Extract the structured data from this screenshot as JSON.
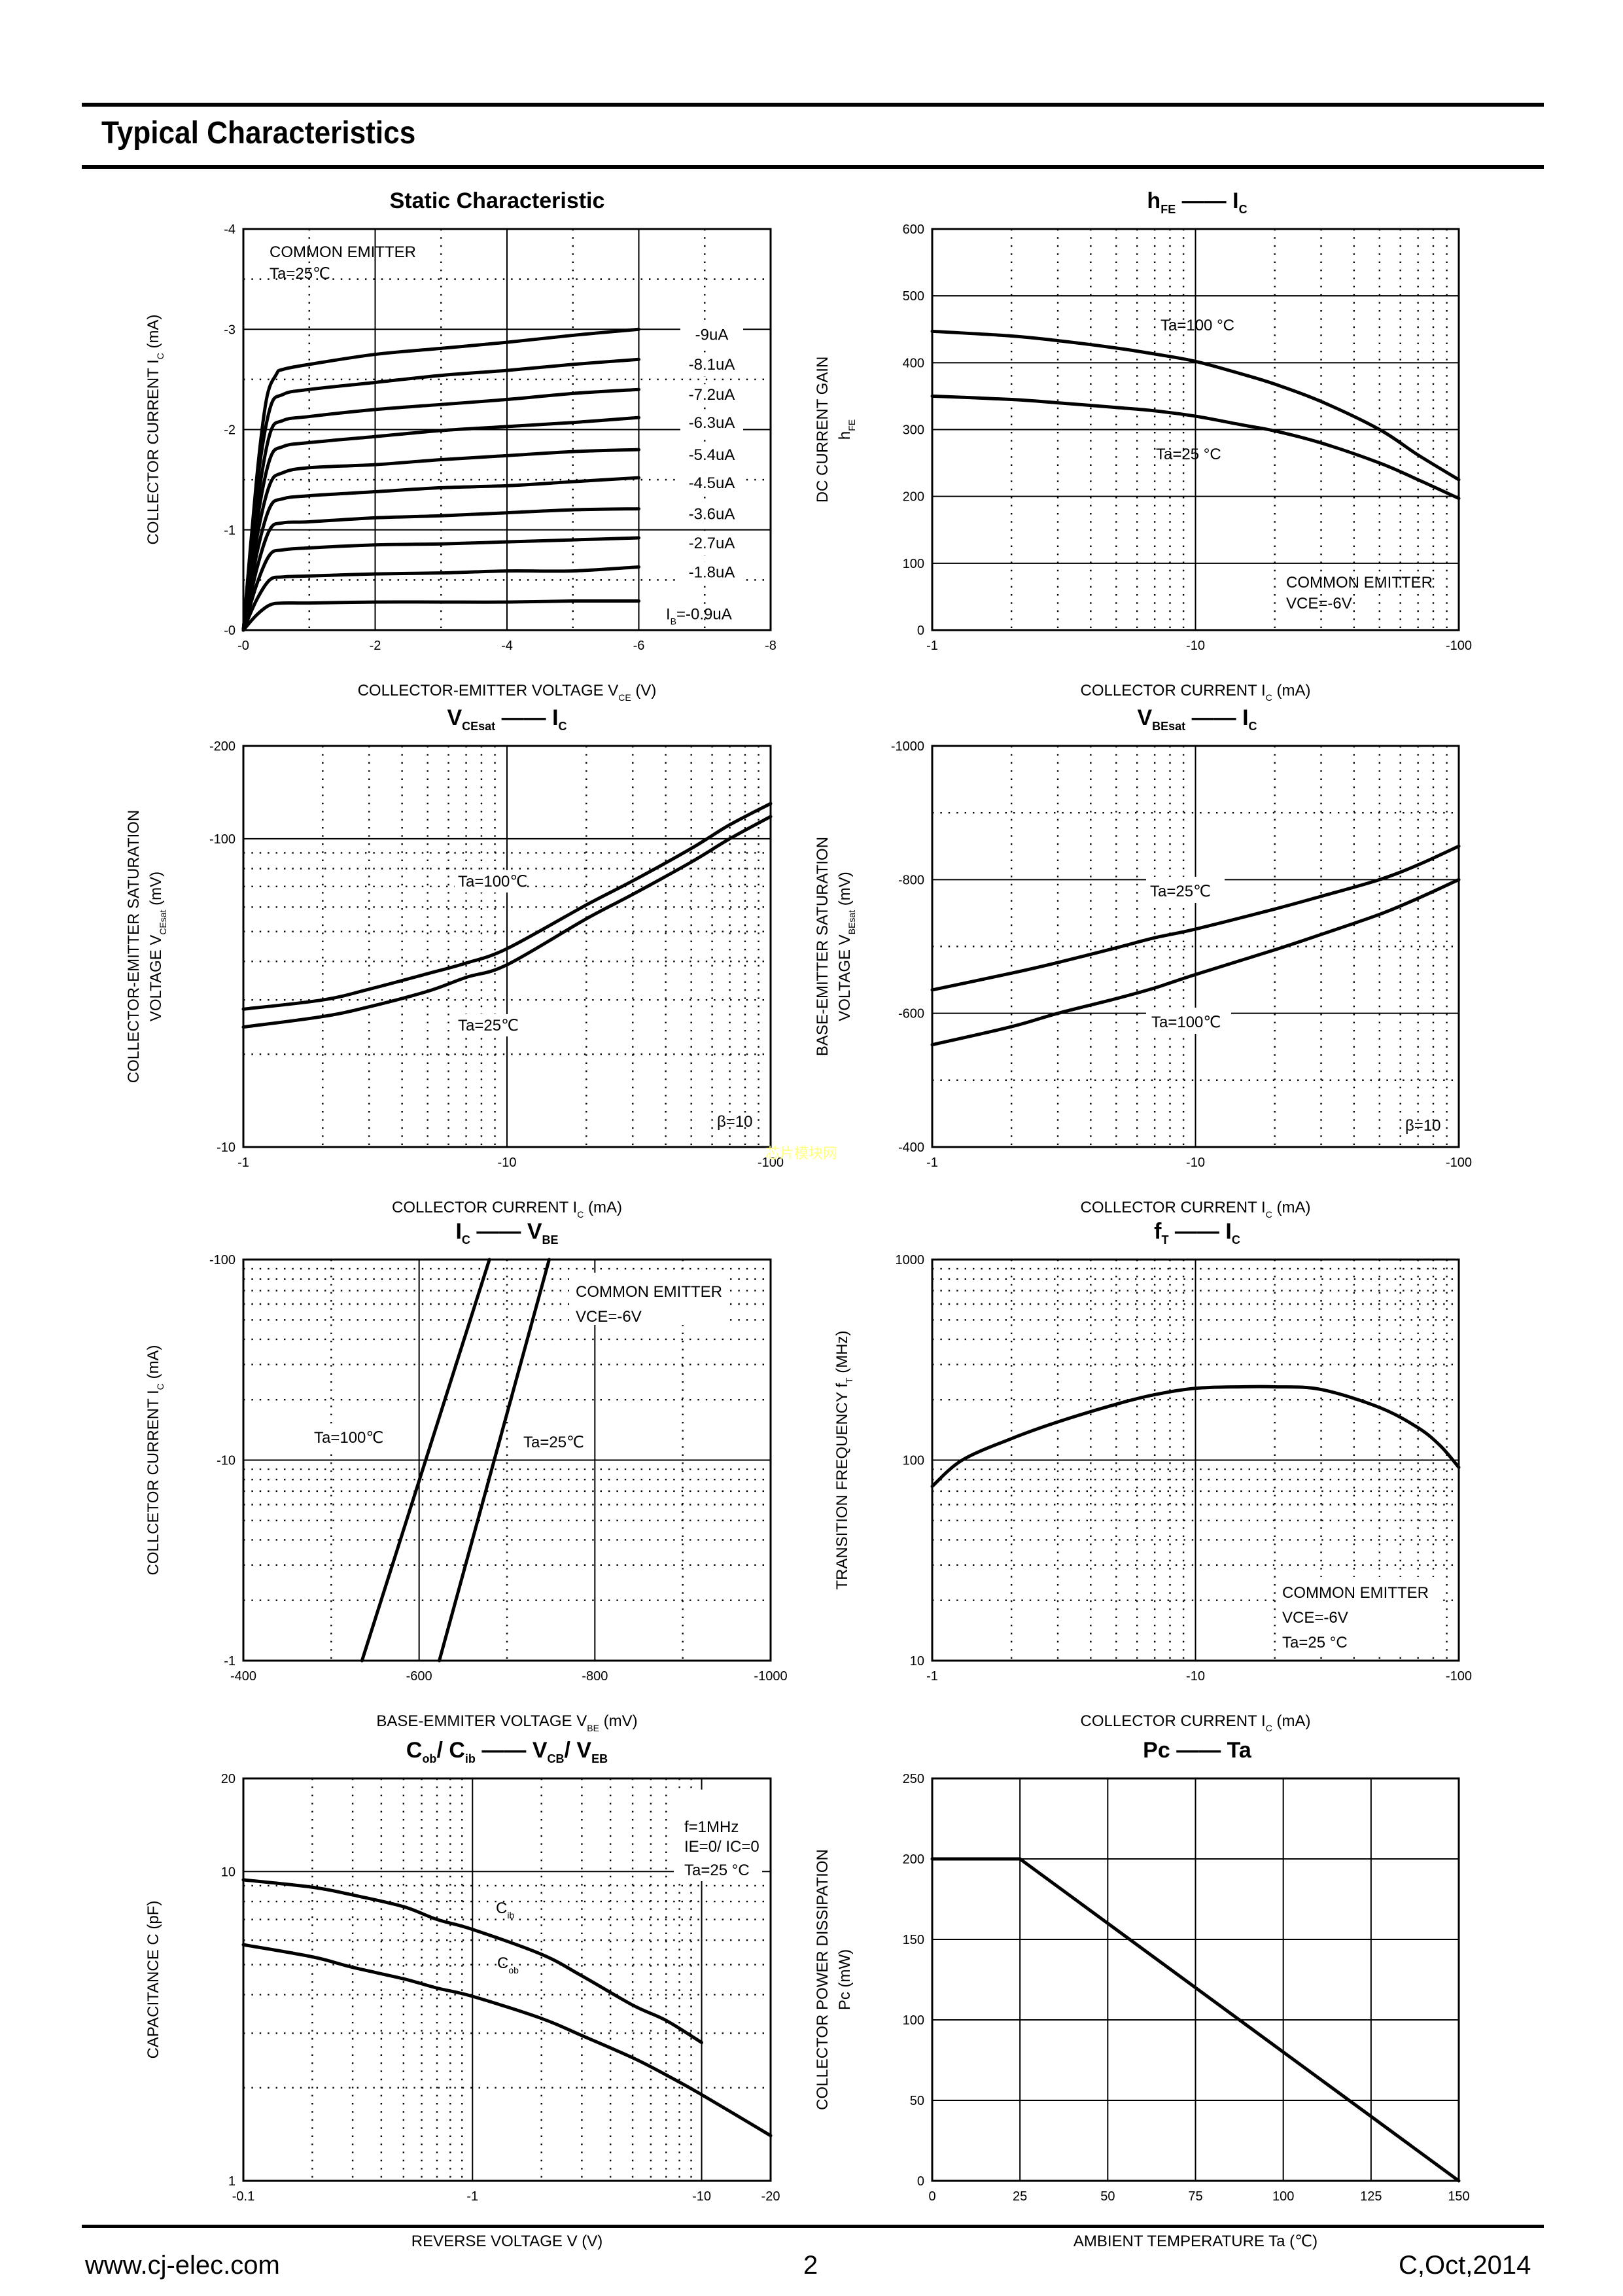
{
  "page": {
    "section_title": "Typical Characteristics",
    "footer": {
      "website": "www.cj-elec.com",
      "page_number": "2",
      "revision": "C,Oct,2014"
    },
    "watermark": "芯片模块网"
  },
  "chart_data": [
    {
      "id": "static",
      "type": "line",
      "title": "Static Characteristic",
      "title_parts": [
        {
          "t": "Static Characteristic"
        }
      ],
      "xlabel": "COLLECTOR-EMITTER VOLTAGE   V",
      "xlabel_sub": "CE",
      "xlabel_unit": "(V)",
      "ylabel": "COLLECTOR CURRENT   I",
      "ylabel_sub": "C",
      "ylabel_unit": "(mA)",
      "xscale": "linear",
      "yscale": "linear",
      "xlim": [
        0,
        -8
      ],
      "ylim": [
        0,
        -4
      ],
      "xticks": [
        0,
        -2,
        -4,
        -6,
        -8
      ],
      "xtick_labels": [
        "-0",
        "-2",
        "-4",
        "-6",
        "-8"
      ],
      "yticks": [
        0,
        -1,
        -2,
        -3,
        -4
      ],
      "ytick_labels": [
        "-0",
        "-1",
        "-2",
        "-3",
        "-4"
      ],
      "grid_major_x": [
        -2,
        -4,
        -6
      ],
      "grid_minor_x": [
        -1,
        -3,
        -5,
        -7
      ],
      "grid_major_y": [
        -1,
        -2,
        -3
      ],
      "grid_minor_y": [
        -0.5,
        -1.5,
        -2.5,
        -3.5
      ],
      "annotations": [
        "COMMON EMITTER",
        "Ta=25℃"
      ],
      "series": [
        {
          "name": "IB=-0.9uA",
          "label": "-0.9uA",
          "x": [
            0,
            -0.2,
            -0.4,
            -0.6,
            -1,
            -2,
            -3,
            -4,
            -5,
            -6
          ],
          "y": [
            0,
            -0.15,
            -0.25,
            -0.27,
            -0.27,
            -0.28,
            -0.28,
            -0.28,
            -0.29,
            -0.29
          ]
        },
        {
          "name": "IB=-1.8uA",
          "label": "-1.8uA",
          "x": [
            0,
            -0.2,
            -0.4,
            -0.6,
            -1,
            -2,
            -3,
            -4,
            -5,
            -6
          ],
          "y": [
            0,
            -0.3,
            -0.5,
            -0.53,
            -0.54,
            -0.56,
            -0.57,
            -0.59,
            -0.59,
            -0.63
          ]
        },
        {
          "name": "IB=-2.7uA",
          "label": "-2.7uA",
          "x": [
            0,
            -0.2,
            -0.4,
            -0.6,
            -1,
            -2,
            -3,
            -4,
            -5,
            -6
          ],
          "y": [
            0,
            -0.45,
            -0.75,
            -0.8,
            -0.82,
            -0.85,
            -0.86,
            -0.88,
            -0.9,
            -0.92
          ]
        },
        {
          "name": "IB=-3.6uA",
          "label": "-3.6uA",
          "x": [
            0,
            -0.2,
            -0.4,
            -0.6,
            -1,
            -2,
            -3,
            -4,
            -5,
            -6
          ],
          "y": [
            0,
            -0.6,
            -1.0,
            -1.07,
            -1.08,
            -1.12,
            -1.14,
            -1.17,
            -1.2,
            -1.21
          ]
        },
        {
          "name": "IB=-4.5uA",
          "label": "-4.5uA",
          "x": [
            0,
            -0.2,
            -0.4,
            -0.6,
            -1,
            -2,
            -3,
            -4,
            -5,
            -6
          ],
          "y": [
            0,
            -0.75,
            -1.22,
            -1.31,
            -1.34,
            -1.38,
            -1.42,
            -1.44,
            -1.48,
            -1.52
          ]
        },
        {
          "name": "IB=-5.4uA",
          "label": "-5.4uA",
          "x": [
            0,
            -0.2,
            -0.4,
            -0.6,
            -1,
            -2,
            -3,
            -4,
            -5,
            -6
          ],
          "y": [
            0,
            -0.9,
            -1.45,
            -1.57,
            -1.62,
            -1.65,
            -1.7,
            -1.74,
            -1.78,
            -1.8
          ]
        },
        {
          "name": "IB=-6.3uA",
          "label": "-6.3uA",
          "x": [
            0,
            -0.2,
            -0.4,
            -0.6,
            -1,
            -2,
            -3,
            -4,
            -5,
            -6
          ],
          "y": [
            0,
            -1.05,
            -1.7,
            -1.83,
            -1.87,
            -1.93,
            -1.99,
            -2.03,
            -2.07,
            -2.12
          ]
        },
        {
          "name": "IB=-7.2uA",
          "label": "-7.2uA",
          "x": [
            0,
            -0.2,
            -0.4,
            -0.6,
            -1,
            -2,
            -3,
            -4,
            -5,
            -6
          ],
          "y": [
            0,
            -1.2,
            -1.95,
            -2.09,
            -2.13,
            -2.2,
            -2.25,
            -2.3,
            -2.36,
            -2.4
          ]
        },
        {
          "name": "IB=-8.1uA",
          "label": "-8.1uA",
          "x": [
            0,
            -0.2,
            -0.4,
            -0.6,
            -1,
            -2,
            -3,
            -4,
            -5,
            -6
          ],
          "y": [
            0,
            -1.4,
            -2.2,
            -2.35,
            -2.4,
            -2.47,
            -2.54,
            -2.59,
            -2.65,
            -2.7
          ]
        },
        {
          "name": "IB=-9uA",
          "label": "-9uA",
          "x": [
            0,
            -0.2,
            -0.35,
            -0.5,
            -0.6,
            -1,
            -2,
            -3,
            -4,
            -5,
            -6
          ],
          "y": [
            0,
            -1.5,
            -2.3,
            -2.55,
            -2.6,
            -2.65,
            -2.75,
            -2.81,
            -2.87,
            -2.94,
            -3.0
          ]
        }
      ],
      "ib_prefix": "I",
      "ib_sub": "B",
      "ib_first_label": "=-0.9uA"
    },
    {
      "id": "hfe",
      "type": "line",
      "title_parts": [
        {
          "t": "h",
          "s": "FE"
        },
        {
          "t": "  ——  "
        },
        {
          "t": "I",
          "s": "C"
        }
      ],
      "xlabel": "COLLECTOR CURRENT   I",
      "xlabel_sub": "C",
      "xlabel_unit": "(mA)",
      "ylabel": "DC CURRENT GAIN",
      "ylabel2": "h",
      "ylabel2_sub": "FE",
      "xscale": "log",
      "yscale": "linear",
      "xlim": [
        1,
        100
      ],
      "ylim": [
        0,
        600
      ],
      "xticks": [
        1,
        10,
        100
      ],
      "xtick_labels": [
        "-1",
        "-10",
        "-100"
      ],
      "yticks": [
        0,
        100,
        200,
        300,
        400,
        500,
        600
      ],
      "ytick_labels": [
        "0",
        "100",
        "200",
        "300",
        "400",
        "500",
        "600"
      ],
      "grid_major_y": [
        100,
        200,
        300,
        400,
        500
      ],
      "grid_major_x": [
        10
      ],
      "annotations": [
        "Ta=100 °C",
        "Ta=25 °C",
        "COMMON EMITTER",
        "VCE=-6V"
      ],
      "series": [
        {
          "name": "Ta=100°C",
          "x": [
            1,
            2,
            3,
            5,
            7,
            10,
            15,
            20,
            30,
            50,
            70,
            100
          ],
          "y": [
            447,
            440,
            433,
            422,
            413,
            402,
            383,
            368,
            342,
            300,
            262,
            225
          ]
        },
        {
          "name": "Ta=25°C",
          "x": [
            1,
            2,
            3,
            5,
            7,
            10,
            15,
            20,
            30,
            50,
            70,
            100
          ],
          "y": [
            350,
            345,
            340,
            333,
            328,
            320,
            307,
            298,
            280,
            250,
            225,
            197
          ]
        }
      ]
    },
    {
      "id": "vcesat",
      "type": "line",
      "title_parts": [
        {
          "t": "V",
          "s": "CEsat"
        },
        {
          "t": "  ——  "
        },
        {
          "t": "I",
          "s": "C"
        }
      ],
      "xlabel": "COLLECTOR CURRENT   I",
      "xlabel_sub": "C",
      "xlabel_unit": "(mA)",
      "ylabel": "COLLECTOR-EMITTER SATURATION",
      "ylabel2": "VOLTAGE   V",
      "ylabel2_sub": "CEsat",
      "ylabel2_unit": "(mV)",
      "xscale": "log",
      "yscale": "log",
      "xlim": [
        1,
        100
      ],
      "ylim": [
        10,
        200
      ],
      "xticks": [
        1,
        10,
        100
      ],
      "xtick_labels": [
        "-1",
        "-10",
        "-100"
      ],
      "yticks": [
        10,
        100,
        200
      ],
      "ytick_labels": [
        "-10",
        "-100",
        "-200"
      ],
      "annotations": [
        "Ta=100℃",
        "Ta=25℃",
        "β=10"
      ],
      "series": [
        {
          "name": "Ta=100℃",
          "x": [
            1,
            2,
            3,
            5,
            7,
            10,
            20,
            30,
            50,
            70,
            100
          ],
          "y": [
            28,
            30,
            32.5,
            36.5,
            39.5,
            44,
            61,
            73,
            93,
            111,
            130
          ]
        },
        {
          "name": "Ta=25℃",
          "x": [
            1,
            2,
            3,
            5,
            7,
            10,
            20,
            30,
            50,
            70,
            100
          ],
          "y": [
            24.5,
            26.5,
            28.5,
            32,
            35.5,
            39,
            55,
            66,
            84,
            100,
            118
          ]
        }
      ]
    },
    {
      "id": "vbesat",
      "type": "line",
      "title_parts": [
        {
          "t": "V",
          "s": "BEsat"
        },
        {
          "t": "  ——  "
        },
        {
          "t": "I",
          "s": "C"
        }
      ],
      "xlabel": "COLLECTOR CURRENT   I",
      "xlabel_sub": "C",
      "xlabel_unit": "(mA)",
      "ylabel": "BASE-EMITTER SATURATION",
      "ylabel2": "VOLTAGE   V",
      "ylabel2_sub": "BEsat",
      "ylabel2_unit": "(mV)",
      "xscale": "log",
      "yscale": "linear",
      "xlim": [
        1,
        100
      ],
      "ylim": [
        400,
        1000
      ],
      "xticks": [
        1,
        10,
        100
      ],
      "xtick_labels": [
        "-1",
        "-10",
        "-100"
      ],
      "yticks": [
        400,
        600,
        800,
        1000
      ],
      "ytick_labels": [
        "-400",
        "-600",
        "-800",
        "-1000"
      ],
      "annotations": [
        "Ta=25℃",
        "Ta=100℃",
        "β=10"
      ],
      "series": [
        {
          "name": "Ta=25℃",
          "x": [
            1,
            2,
            3,
            5,
            7,
            10,
            20,
            30,
            50,
            70,
            100
          ],
          "y": [
            635,
            660,
            676,
            698,
            713,
            726,
            756,
            775,
            800,
            822,
            850
          ]
        },
        {
          "name": "Ta=100℃",
          "x": [
            1,
            2,
            3,
            5,
            7,
            10,
            20,
            30,
            50,
            70,
            100
          ],
          "y": [
            553,
            580,
            600,
            622,
            638,
            658,
            695,
            718,
            748,
            772,
            800
          ]
        }
      ]
    },
    {
      "id": "icvbe",
      "type": "line",
      "title_parts": [
        {
          "t": "I",
          "s": "C"
        },
        {
          "t": "  ——  "
        },
        {
          "t": "V",
          "s": "BE"
        }
      ],
      "xlabel": "BASE-EMMITER VOLTAGE   V",
      "xlabel_sub": "BE",
      "xlabel_unit": "(mV)",
      "ylabel": "COLLCETOR CURRENT   I",
      "ylabel_sub": "C",
      "ylabel_unit": "(mA)",
      "xscale": "linear",
      "yscale": "log",
      "xlim": [
        400,
        1000
      ],
      "ylim": [
        1,
        100
      ],
      "xticks": [
        400,
        600,
        800,
        1000
      ],
      "xtick_labels": [
        "-400",
        "-600",
        "-800",
        "-1000"
      ],
      "yticks": [
        1,
        10,
        100
      ],
      "ytick_labels": [
        "-1",
        "-10",
        "-100"
      ],
      "annotations": [
        "Ta=100℃",
        "Ta=25℃",
        "COMMON EMITTER",
        "VCE=-6V"
      ],
      "series": [
        {
          "name": "Ta=100℃",
          "x": [
            535,
            680
          ],
          "y": [
            1,
            100
          ]
        },
        {
          "name": "Ta=25℃",
          "x": [
            623,
            748
          ],
          "y": [
            1,
            100
          ]
        }
      ]
    },
    {
      "id": "ft",
      "type": "line",
      "title_parts": [
        {
          "t": "f",
          "s": "T"
        },
        {
          "t": "  ——  "
        },
        {
          "t": "I",
          "s": "C"
        }
      ],
      "xlabel": "COLLECTOR CURRENT   I",
      "xlabel_sub": "C",
      "xlabel_unit": "(mA)",
      "ylabel": "TRANSITION FREQUENCY   f",
      "ylabel_sub": "T",
      "ylabel_unit": "(MHz)",
      "xscale": "log",
      "yscale": "log",
      "xlim": [
        1,
        100
      ],
      "ylim": [
        10,
        1000
      ],
      "xticks": [
        1,
        10,
        100
      ],
      "xtick_labels": [
        "-1",
        "-10",
        "-100"
      ],
      "yticks": [
        10,
        100,
        1000
      ],
      "ytick_labels": [
        "10",
        "100",
        "1000"
      ],
      "annotations": [
        "COMMON EMITTER",
        "VCE=-6V",
        "Ta=25 °C"
      ],
      "series": [
        {
          "name": "fT",
          "x": [
            1,
            1.3,
            2,
            3,
            5,
            7,
            10,
            15,
            20,
            30,
            50,
            70,
            85,
            100
          ],
          "y": [
            74,
            100,
            128,
            155,
            190,
            212,
            228,
            232,
            232,
            225,
            183,
            145,
            118,
            92
          ]
        }
      ]
    },
    {
      "id": "cap",
      "type": "line",
      "title_parts": [
        {
          "t": "C",
          "s": "ob"
        },
        {
          "t": "/ "
        },
        {
          "t": "C",
          "s": "ib"
        },
        {
          "t": "  ——  "
        },
        {
          "t": "V",
          "s": "CB"
        },
        {
          "t": "/ "
        },
        {
          "t": "V",
          "s": "EB"
        }
      ],
      "xlabel": "REVERSE VOLTAGE   V",
      "xlabel_unit": "(V)",
      "ylabel": "CAPACITANCE   C",
      "ylabel_unit": "(pF)",
      "xscale": "log",
      "yscale": "log",
      "xlim": [
        0.1,
        20
      ],
      "ylim": [
        1,
        20
      ],
      "xticks": [
        0.1,
        1,
        10,
        20
      ],
      "xtick_labels": [
        "-0.1",
        "-1",
        "-10",
        "-20"
      ],
      "yticks": [
        1,
        10,
        20
      ],
      "ytick_labels": [
        "1",
        "10",
        "20"
      ],
      "annotations": [
        "f=1MHz",
        "IE=0/ IC=0",
        "Ta=25 °C"
      ],
      "series": [
        {
          "name": "Cib",
          "x": [
            0.1,
            0.2,
            0.3,
            0.5,
            0.7,
            1,
            2,
            3,
            5,
            7,
            10
          ],
          "y": [
            9.4,
            8.9,
            8.4,
            7.7,
            7.0,
            6.5,
            5.4,
            4.6,
            3.7,
            3.3,
            2.8
          ]
        },
        {
          "name": "Cob",
          "x": [
            0.1,
            0.2,
            0.3,
            0.5,
            0.7,
            1,
            2,
            3,
            5,
            7,
            10,
            20
          ],
          "y": [
            5.8,
            5.3,
            4.9,
            4.5,
            4.2,
            3.95,
            3.35,
            2.95,
            2.5,
            2.2,
            1.9,
            1.4
          ]
        }
      ]
    },
    {
      "id": "pc",
      "type": "line",
      "title_parts": [
        {
          "t": "Pc"
        },
        {
          "t": "  ——  "
        },
        {
          "t": "Ta"
        }
      ],
      "xlabel": "AMBIENT TEMPERATURE   Ta",
      "xlabel_unit": "(℃)",
      "ylabel": "COLLECTOR POWER DISSIPATION",
      "ylabel2": "Pc",
      "ylabel2_unit": "(mW)",
      "xscale": "linear",
      "yscale": "linear",
      "xlim": [
        0,
        150
      ],
      "ylim": [
        0,
        250
      ],
      "xticks": [
        0,
        25,
        50,
        75,
        100,
        125,
        150
      ],
      "xtick_labels": [
        "0",
        "25",
        "50",
        "75",
        "100",
        "125",
        "150"
      ],
      "yticks": [
        0,
        50,
        100,
        150,
        200,
        250
      ],
      "ytick_labels": [
        "0",
        "50",
        "100",
        "150",
        "200",
        "250"
      ],
      "series": [
        {
          "name": "Pc",
          "x": [
            0,
            25,
            150
          ],
          "y": [
            200,
            200,
            0
          ]
        }
      ]
    }
  ]
}
